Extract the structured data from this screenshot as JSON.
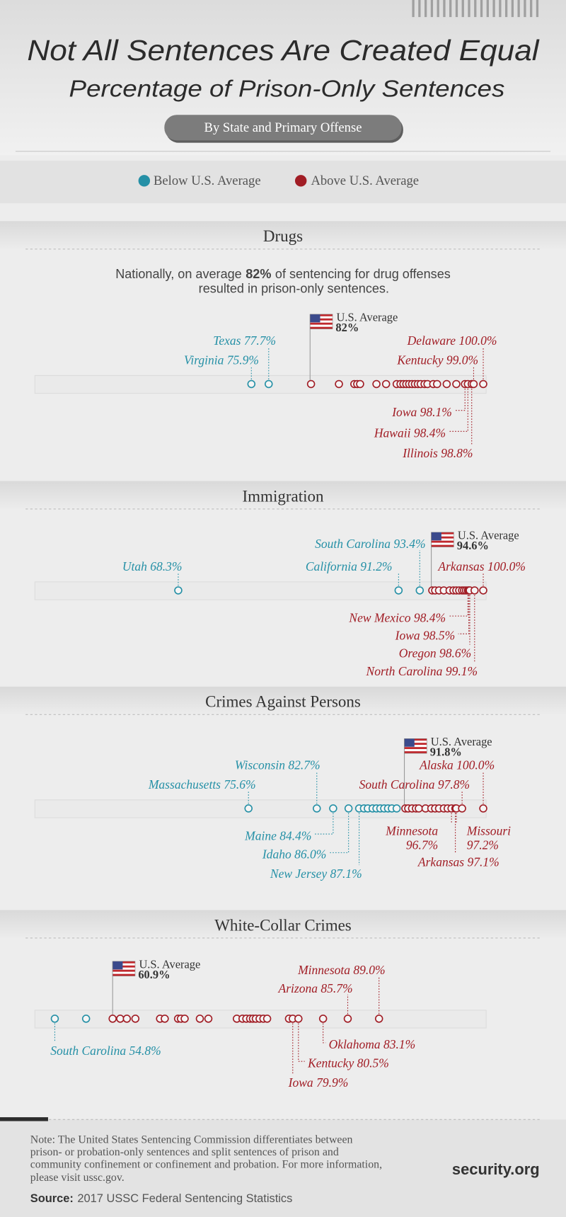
{
  "header": {
    "title": "Not All Sentences Are Created Equal",
    "subtitle": "Percentage of Prison-Only Sentences",
    "badge": "By State and Primary Offense"
  },
  "legend": [
    {
      "name": "Below U.S. Average",
      "color": "#2590a6"
    },
    {
      "name": "Above U.S. Average",
      "color": "#a11d25"
    }
  ],
  "chart_data": [
    {
      "type": "dotplot",
      "title": "Drugs",
      "description": {
        "lead": "Nationally, on average",
        "figure": "82%",
        "rest": "of sentencing for drug offenses",
        "line2": "resulted in prison-only sentences."
      },
      "average": 82,
      "average_label": "U.S. Average",
      "average_value_label": "82%",
      "xlim": [
        53.4,
        100.3
      ],
      "categories": [
        "Virginia",
        "Texas",
        null,
        null,
        null,
        null,
        null,
        null,
        null,
        null,
        null,
        null,
        null,
        null,
        null,
        null,
        null,
        null,
        null,
        null,
        null,
        null,
        null,
        null,
        "Iowa",
        "Hawaii",
        "Illinois",
        "Kentucky",
        "Delaware"
      ],
      "values": [
        75.9,
        77.7,
        82.1,
        85.0,
        86.6,
        86.9,
        87.2,
        88.9,
        89.9,
        91.0,
        91.4,
        91.7,
        92.0,
        92.3,
        92.6,
        92.9,
        93.2,
        93.5,
        93.9,
        94.2,
        94.8,
        95.2,
        96.2,
        97.2,
        98.1,
        98.4,
        98.8,
        99.0,
        100.0
      ],
      "value_labels": [
        "75.9%",
        "77.7%",
        null,
        null,
        null,
        null,
        null,
        null,
        null,
        null,
        null,
        null,
        null,
        null,
        null,
        null,
        null,
        null,
        null,
        null,
        null,
        null,
        null,
        null,
        "98.1%",
        "98.4%",
        "98.8%",
        "99.0%",
        "100.0%"
      ]
    },
    {
      "type": "dotplot",
      "title": "Immigration",
      "average": 94.6,
      "average_label": "U.S. Average",
      "average_value_label": "94.6%",
      "xlim": [
        53.4,
        100.3
      ],
      "categories": [
        "Utah",
        "California",
        "South Carolina",
        null,
        null,
        null,
        null,
        null,
        null,
        null,
        null,
        null,
        null,
        null,
        "New Mexico",
        "Iowa",
        "Oregon",
        "North Carolina",
        "Arkansas"
      ],
      "values": [
        68.3,
        91.2,
        93.4,
        94.7,
        95.0,
        95.4,
        95.9,
        96.5,
        96.9,
        97.2,
        97.5,
        97.8,
        98.0,
        98.2,
        98.4,
        98.5,
        98.6,
        99.1,
        100.0
      ],
      "value_labels": [
        "68.3%",
        "91.2%",
        "93.4%",
        null,
        null,
        null,
        null,
        null,
        null,
        null,
        null,
        null,
        null,
        null,
        "98.4%",
        "98.5%",
        "98.6%",
        "99.1%",
        "100.0%"
      ]
    },
    {
      "type": "dotplot",
      "title": "Crimes Against Persons",
      "average": 91.8,
      "average_label": "U.S. Average",
      "average_value_label": "91.8%",
      "xlim": [
        53.4,
        100.3
      ],
      "categories": [
        "Massachusetts",
        "Wisconsin",
        "Maine",
        "Idaho",
        "New Jersey",
        null,
        null,
        null,
        null,
        null,
        null,
        null,
        null,
        null,
        null,
        null,
        null,
        null,
        null,
        null,
        null,
        null,
        null,
        null,
        null,
        "Minnesota",
        "Arkansas",
        "Missouri",
        "South Carolina",
        "Alaska"
      ],
      "values": [
        75.6,
        82.7,
        84.4,
        86.0,
        87.1,
        87.6,
        88.0,
        88.5,
        88.9,
        89.3,
        89.7,
        90.1,
        90.5,
        91.0,
        91.9,
        92.2,
        92.6,
        93.0,
        93.3,
        94.0,
        94.6,
        95.0,
        95.4,
        95.9,
        96.3,
        96.7,
        97.1,
        97.2,
        97.8,
        100.0
      ],
      "value_labels": [
        "75.6%",
        "82.7%",
        "84.4%",
        "86.0%",
        "87.1%",
        null,
        null,
        null,
        null,
        null,
        null,
        null,
        null,
        null,
        null,
        null,
        null,
        null,
        null,
        null,
        null,
        null,
        null,
        null,
        null,
        "96.7%",
        "97.1%",
        "97.2%",
        "97.8%",
        "100.0%"
      ]
    },
    {
      "type": "dotplot",
      "title": "White-Collar Crimes",
      "average": 60.9,
      "average_label": "U.S. Average",
      "average_value_label": "60.9%",
      "xlim": [
        52.7,
        100.3
      ],
      "categories": [
        "South Carolina",
        null,
        null,
        null,
        null,
        null,
        null,
        null,
        null,
        null,
        null,
        null,
        null,
        null,
        null,
        null,
        null,
        null,
        null,
        null,
        null,
        null,
        null,
        "Iowa",
        "Kentucky",
        "Oklahoma",
        "Arizona",
        "Minnesota"
      ],
      "values": [
        54.8,
        58.1,
        60.9,
        61.7,
        62.4,
        63.3,
        65.9,
        66.4,
        67.8,
        68.1,
        68.5,
        70.1,
        71.0,
        74.0,
        74.6,
        75.0,
        75.4,
        75.7,
        76.0,
        76.4,
        76.8,
        77.2,
        79.5,
        79.9,
        80.5,
        83.1,
        85.7,
        89.0
      ],
      "value_labels": [
        "54.8%",
        null,
        null,
        null,
        null,
        null,
        null,
        null,
        null,
        null,
        null,
        null,
        null,
        null,
        null,
        null,
        null,
        null,
        null,
        null,
        null,
        null,
        null,
        "79.9%",
        "80.5%",
        "83.1%",
        "85.7%",
        "89.0%"
      ]
    }
  ],
  "footer": {
    "note": [
      "Note: The United States Sentencing Commission differentiates between",
      "prison- or probation-only sentences and split sentences of prison and",
      "community confinement or confinement and probation. For more information,",
      "please visit ussc.gov."
    ],
    "source_label": "Source:",
    "source": "2017 USSC Federal Sentencing Statistics",
    "brand": "security.org"
  }
}
